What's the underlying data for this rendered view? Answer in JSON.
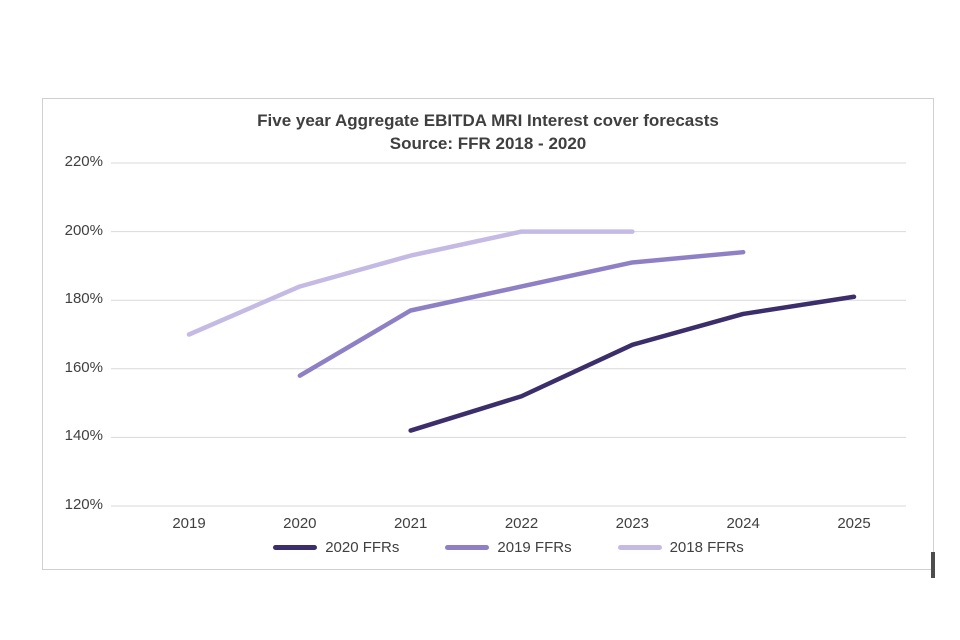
{
  "chart_data": {
    "type": "line",
    "title": "Five year Aggregate EBITDA MRI Interest cover forecasts",
    "subtitle": "Source: FFR 2018 - 2020",
    "x_labels": [
      "2019",
      "2020",
      "2021",
      "2022",
      "2023",
      "2024",
      "2025"
    ],
    "y_tick_labels": [
      "220%",
      "200%",
      "180%",
      "160%",
      "140%",
      "120%"
    ],
    "y_tick_values": [
      220,
      200,
      180,
      160,
      140,
      120
    ],
    "ylim": [
      120,
      220
    ],
    "grid": "horizontal",
    "legend_position": "bottom",
    "series": [
      {
        "name": "2020 FFRs",
        "color": "#3b2e6b",
        "values": [
          null,
          null,
          142,
          152,
          167,
          176,
          181
        ]
      },
      {
        "name": "2019 FFRs",
        "color": "#8f80c5",
        "values": [
          null,
          158,
          177,
          184,
          191,
          194,
          null
        ]
      },
      {
        "name": "2018 FFRs",
        "color": "#c5bae4",
        "values": [
          170,
          184,
          193,
          200,
          200,
          null,
          null
        ]
      }
    ],
    "colors": {
      "gridline": "#d9d9d9",
      "frame_border": "#cfcfcf",
      "text": "#404040"
    }
  }
}
